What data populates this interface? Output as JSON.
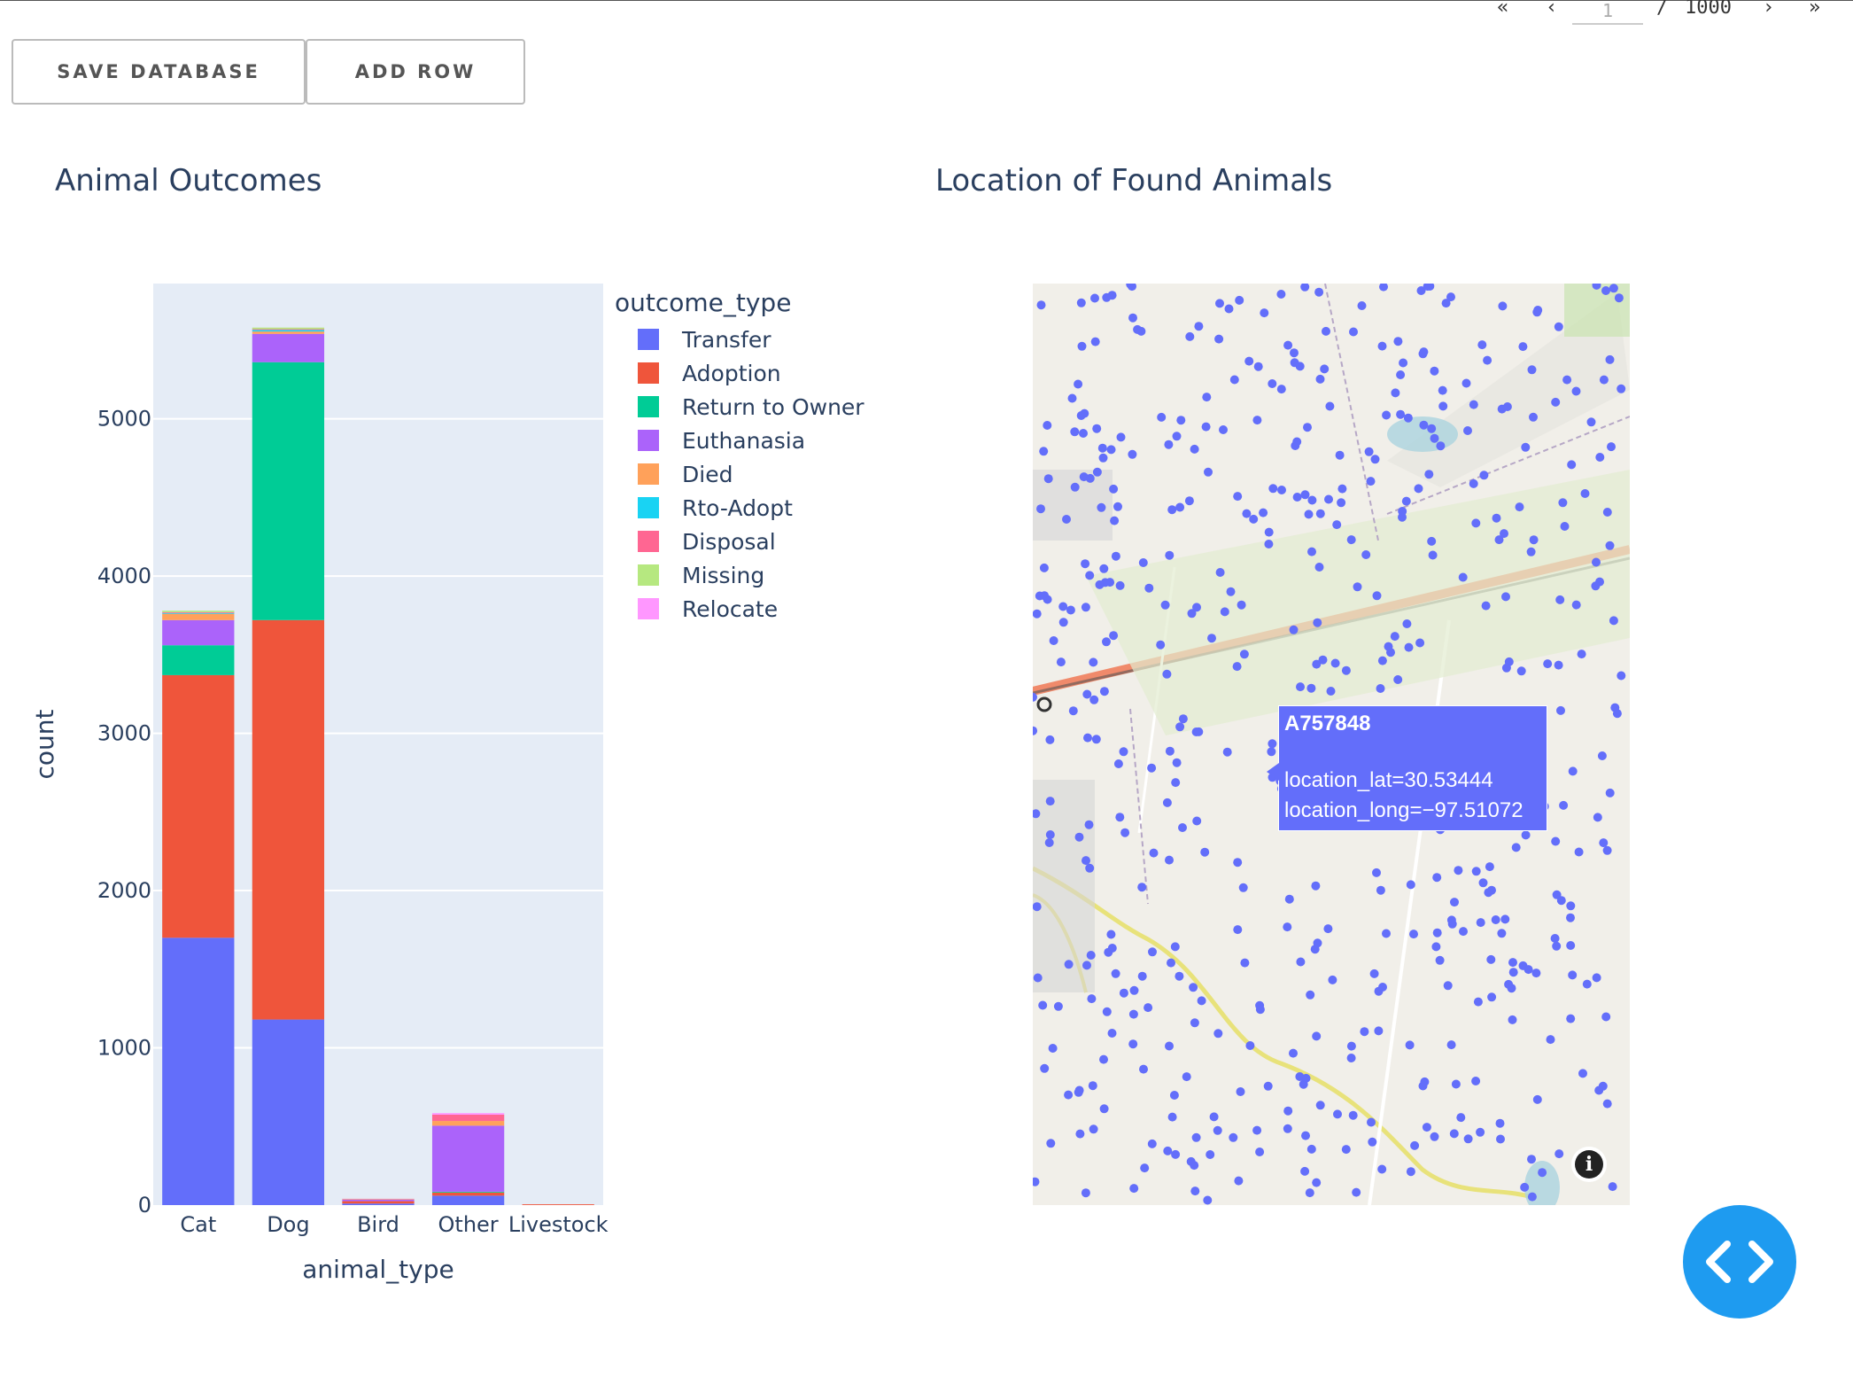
{
  "pager": {
    "first": "«",
    "prev": "‹",
    "current": "1",
    "slash": "/",
    "total": "1000",
    "next": "›",
    "last": "»"
  },
  "toolbar": {
    "save_label": "SAVE DATABASE",
    "add_label": "ADD ROW"
  },
  "bar_title": "Animal Outcomes",
  "map_title": "Location of Found Animals",
  "legend": {
    "title": "outcome_type",
    "items": [
      {
        "label": "Transfer",
        "color": "#636efa"
      },
      {
        "label": "Adoption",
        "color": "#ef553b"
      },
      {
        "label": "Return to Owner",
        "color": "#00cc96"
      },
      {
        "label": "Euthanasia",
        "color": "#ab63fa"
      },
      {
        "label": "Died",
        "color": "#ffa15a"
      },
      {
        "label": "Rto-Adopt",
        "color": "#19d3f3"
      },
      {
        "label": "Disposal",
        "color": "#ff6692"
      },
      {
        "label": "Missing",
        "color": "#b6e880"
      },
      {
        "label": "Relocate",
        "color": "#ff97ff"
      }
    ]
  },
  "chart_data": {
    "type": "bar",
    "stacked": true,
    "xlabel": "animal_type",
    "ylabel": "count",
    "ylim": [
      0,
      5860
    ],
    "yticks": [
      0,
      1000,
      2000,
      3000,
      4000,
      5000
    ],
    "categories": [
      "Cat",
      "Dog",
      "Bird",
      "Other",
      "Livestock"
    ],
    "series": [
      {
        "name": "Transfer",
        "values": [
          1700,
          1180,
          10,
          60,
          0
        ]
      },
      {
        "name": "Adoption",
        "values": [
          1670,
          2540,
          15,
          20,
          5
        ]
      },
      {
        "name": "Return to Owner",
        "values": [
          190,
          1640,
          0,
          5,
          0
        ]
      },
      {
        "name": "Euthanasia",
        "values": [
          160,
          180,
          10,
          420,
          0
        ]
      },
      {
        "name": "Died",
        "values": [
          40,
          15,
          3,
          30,
          0
        ]
      },
      {
        "name": "Rto-Adopt",
        "values": [
          5,
          10,
          0,
          0,
          0
        ]
      },
      {
        "name": "Disposal",
        "values": [
          5,
          5,
          2,
          40,
          0
        ]
      },
      {
        "name": "Missing",
        "values": [
          10,
          10,
          0,
          0,
          0
        ]
      },
      {
        "name": "Relocate",
        "values": [
          0,
          0,
          0,
          10,
          0
        ]
      }
    ],
    "legend_position": "right",
    "grid": true
  },
  "tooltip": {
    "id": "A757848",
    "lat": "location_lat=30.53444",
    "long": "location_long=−97.51072"
  },
  "map": {
    "marker_color": "#636efa",
    "info_icon": "info-icon"
  },
  "fab": {
    "icon": "code-icon"
  }
}
